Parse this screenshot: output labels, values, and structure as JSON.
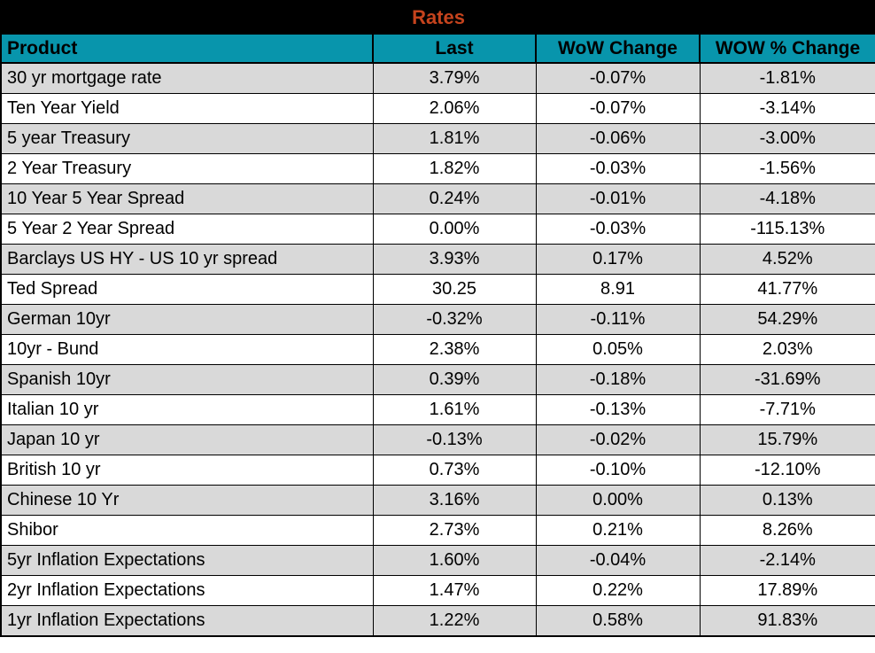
{
  "title": "Rates",
  "colors": {
    "title_bg": "#000000",
    "title_text": "#C5431D",
    "header_bg": "#0895AC",
    "header_text": "#000000",
    "row_alt_bg": "#D9D9D9",
    "row_bg": "#FFFFFF",
    "border": "#000000"
  },
  "chart_data": {
    "type": "table",
    "title": "Rates",
    "columns": [
      "Product",
      "Last",
      "WoW Change",
      "WOW % Change"
    ],
    "rows": [
      [
        "30 yr mortgage rate",
        "3.79%",
        "-0.07%",
        "-1.81%"
      ],
      [
        "Ten Year Yield",
        "2.06%",
        "-0.07%",
        "-3.14%"
      ],
      [
        "5 year Treasury",
        "1.81%",
        "-0.06%",
        "-3.00%"
      ],
      [
        "2 Year Treasury",
        "1.82%",
        "-0.03%",
        "-1.56%"
      ],
      [
        "10 Year 5 Year Spread",
        "0.24%",
        "-0.01%",
        "-4.18%"
      ],
      [
        "5 Year 2 Year Spread",
        "0.00%",
        "-0.03%",
        "-115.13%"
      ],
      [
        "Barclays US HY - US 10 yr spread",
        "3.93%",
        "0.17%",
        "4.52%"
      ],
      [
        "Ted Spread",
        "30.25",
        "8.91",
        "41.77%"
      ],
      [
        "German 10yr",
        "-0.32%",
        "-0.11%",
        "54.29%"
      ],
      [
        "10yr - Bund",
        "2.38%",
        "0.05%",
        "2.03%"
      ],
      [
        "Spanish 10yr",
        "0.39%",
        "-0.18%",
        "-31.69%"
      ],
      [
        "Italian 10 yr",
        "1.61%",
        "-0.13%",
        "-7.71%"
      ],
      [
        "Japan 10 yr",
        "-0.13%",
        "-0.02%",
        "15.79%"
      ],
      [
        "British 10 yr",
        "0.73%",
        "-0.10%",
        "-12.10%"
      ],
      [
        "Chinese 10 Yr",
        "3.16%",
        "0.00%",
        "0.13%"
      ],
      [
        "Shibor",
        "2.73%",
        "0.21%",
        "8.26%"
      ],
      [
        "5yr Inflation Expectations",
        "1.60%",
        "-0.04%",
        "-2.14%"
      ],
      [
        "2yr Inflation Expectations",
        "1.47%",
        "0.22%",
        "17.89%"
      ],
      [
        "1yr Inflation Expectations",
        "1.22%",
        "0.58%",
        "91.83%"
      ]
    ],
    "cell_names": [
      "product-cell",
      "last-cell",
      "wow-change-cell",
      "wow-pct-change-cell"
    ]
  }
}
